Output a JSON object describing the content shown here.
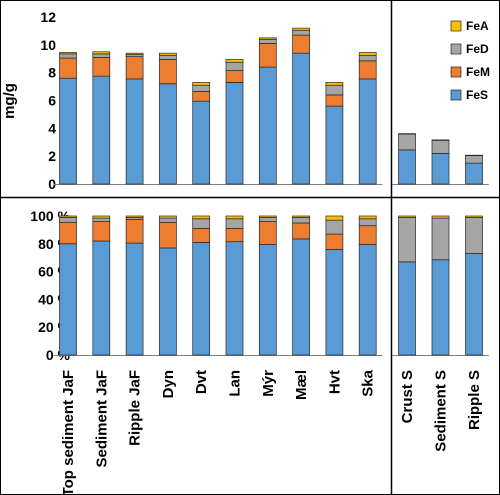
{
  "chart_data": [
    {
      "type": "bar",
      "stacked": true,
      "ylabel": "mg/g",
      "ylim": [
        0,
        12
      ],
      "yticks": [
        "0",
        "2",
        "4",
        "6",
        "8",
        "10",
        "12"
      ],
      "categories": [
        "Top sediment JaF",
        "Sediment JaF",
        "Ripple JaF",
        "Dyn",
        "Dvt",
        "Lan",
        "Mýr",
        "Mæl",
        "Hvt",
        "Ska"
      ],
      "series": [
        {
          "name": "FeS",
          "values": [
            7.6,
            7.75,
            7.55,
            7.2,
            5.95,
            7.3,
            8.4,
            9.4,
            5.6,
            7.55
          ]
        },
        {
          "name": "FeM",
          "values": [
            1.45,
            1.35,
            1.6,
            1.75,
            0.7,
            0.85,
            1.7,
            1.3,
            0.8,
            1.3
          ]
        },
        {
          "name": "FeD",
          "values": [
            0.3,
            0.25,
            0.15,
            0.3,
            0.45,
            0.6,
            0.3,
            0.35,
            0.7,
            0.4
          ]
        },
        {
          "name": "FeA",
          "values": [
            0.1,
            0.15,
            0.1,
            0.15,
            0.2,
            0.2,
            0.1,
            0.15,
            0.2,
            0.2
          ]
        }
      ],
      "grid": false
    },
    {
      "type": "bar",
      "stacked": true,
      "ylim": [
        0,
        12
      ],
      "categories": [
        "Crust S",
        "Sediment S",
        "Ripple S"
      ],
      "series": [
        {
          "name": "FeS",
          "values": [
            2.45,
            2.2,
            1.5
          ]
        },
        {
          "name": "FeM",
          "values": [
            0,
            0,
            0
          ]
        },
        {
          "name": "FeD",
          "values": [
            1.15,
            0.95,
            0.55
          ]
        },
        {
          "name": "FeA",
          "values": [
            0.02,
            0.02,
            0.02
          ]
        }
      ],
      "legend": {
        "position": "top-right",
        "entries": [
          "FeA",
          "FeD",
          "FeM",
          "FeS"
        ]
      }
    },
    {
      "type": "bar",
      "stacked": true,
      "percent": true,
      "ylim": [
        0,
        100
      ],
      "yticks": [
        "0 %",
        "20 %",
        "40 %",
        "60 %",
        "80 %",
        "100 %"
      ],
      "categories": [
        "Top sediment JaF",
        "Sediment JaF",
        "Ripple JaF",
        "Dyn",
        "Dvt",
        "Lan",
        "Mýr",
        "Mæl",
        "Hvt",
        "Ska"
      ],
      "series": [
        {
          "name": "FeS",
          "values": [
            80,
            82,
            80.5,
            77,
            81,
            81.5,
            79.5,
            83.5,
            76,
            79.5
          ]
        },
        {
          "name": "FeM",
          "values": [
            15.5,
            14,
            17,
            18.5,
            10,
            9.5,
            16.5,
            11.5,
            11,
            13.5
          ]
        },
        {
          "name": "FeD",
          "values": [
            3.5,
            2.5,
            1.5,
            3,
            7,
            7,
            3,
            4,
            10,
            5
          ]
        },
        {
          "name": "FeA",
          "values": [
            1,
            1.5,
            1,
            1.5,
            2,
            2,
            1,
            1,
            3,
            2
          ]
        }
      ]
    },
    {
      "type": "bar",
      "stacked": true,
      "percent": true,
      "ylim": [
        0,
        100
      ],
      "categories": [
        "Crust S",
        "Sediment S",
        "Ripple S"
      ],
      "series": [
        {
          "name": "FeS",
          "values": [
            67,
            68.5,
            73
          ]
        },
        {
          "name": "FeM",
          "values": [
            0,
            0,
            0
          ]
        },
        {
          "name": "FeD",
          "values": [
            32,
            30,
            26
          ]
        },
        {
          "name": "FeA",
          "values": [
            1,
            1.5,
            1
          ]
        }
      ]
    }
  ],
  "colors": {
    "FeS": "#5b9bd5",
    "FeM": "#ed7d31",
    "FeD": "#a5a5a5",
    "FeA": "#ffc000"
  }
}
